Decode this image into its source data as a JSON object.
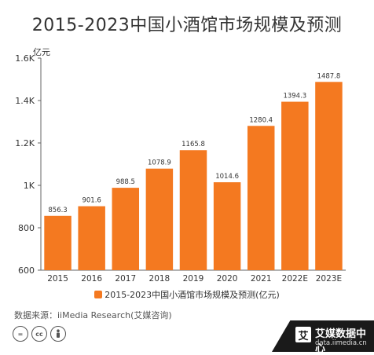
{
  "title": "2015-2023中国小酒馆市场规模及预测",
  "source": "数据来源：iiMedia Research(艾媒咨询)",
  "brand": {
    "logo": "艾",
    "name": "艾媒数据中心",
    "url": "data.iimedia.cn"
  },
  "license_icons": [
    "=",
    "cc",
    "person-icon"
  ],
  "colors": {
    "bar": "#f47920",
    "axis": "#666666",
    "label": "#333333"
  },
  "chart_data": {
    "type": "bar",
    "title": "2015-2023中国小酒馆市场规模及预测",
    "ylabel": "亿元",
    "categories": [
      "2015",
      "2016",
      "2017",
      "2018",
      "2019",
      "2020",
      "2021",
      "2022E",
      "2023E"
    ],
    "series": [
      {
        "name": "2015-2023中国小酒馆市场规模及预测(亿元)",
        "values": [
          856.3,
          901.6,
          988.5,
          1078.9,
          1165.8,
          1014.6,
          1280.4,
          1394.3,
          1487.8
        ],
        "value_labels": [
          "856.3",
          "901.6",
          "988.5",
          "1078.9",
          "1165.8",
          "1014.6",
          "1280.4",
          "1394.3",
          "1487.8"
        ]
      }
    ],
    "ylim": [
      600,
      1600
    ],
    "yticks": [
      600,
      800,
      1000,
      1200,
      1400,
      1600
    ],
    "ytick_labels": [
      "600",
      "800",
      "1K",
      "1.2K",
      "1.4K",
      "1.6K"
    ],
    "grid": false,
    "legend": "bottom"
  }
}
